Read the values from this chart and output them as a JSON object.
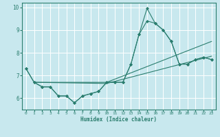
{
  "xlabel": "Humidex (Indice chaleur)",
  "xlim": [
    -0.5,
    23.5
  ],
  "ylim": [
    5.5,
    10.2
  ],
  "yticks": [
    6,
    7,
    8,
    9,
    10
  ],
  "xticks": [
    0,
    1,
    2,
    3,
    4,
    5,
    6,
    7,
    8,
    9,
    10,
    11,
    12,
    13,
    14,
    15,
    16,
    17,
    18,
    19,
    20,
    21,
    22,
    23
  ],
  "bg_color": "#c8e8ee",
  "grid_color": "#ffffff",
  "line_color": "#2a7d6e",
  "lines": [
    {
      "x": [
        0,
        1,
        2,
        3,
        4,
        5,
        6,
        7,
        8,
        9,
        10,
        11,
        12,
        13,
        14,
        15,
        16,
        17,
        18,
        19,
        20,
        21,
        22,
        23
      ],
      "y": [
        7.3,
        6.7,
        6.5,
        6.5,
        6.1,
        6.1,
        5.8,
        6.1,
        6.2,
        6.3,
        6.7,
        6.7,
        6.7,
        7.5,
        8.8,
        9.95,
        9.3,
        9.0,
        8.5,
        7.5,
        7.5,
        7.7,
        7.8,
        7.7
      ],
      "marker": "D",
      "markersize": 2.0
    },
    {
      "x": [
        0,
        1,
        2,
        3,
        4,
        5,
        6,
        7,
        8,
        9,
        10,
        11,
        12,
        13,
        14,
        15,
        16,
        17,
        18,
        19,
        20,
        21,
        22,
        23
      ],
      "y": [
        7.3,
        6.7,
        6.5,
        6.5,
        6.1,
        6.1,
        5.8,
        6.1,
        6.2,
        6.3,
        6.7,
        6.7,
        6.7,
        7.5,
        8.8,
        9.4,
        9.3,
        9.0,
        8.5,
        7.5,
        7.5,
        7.7,
        7.8,
        7.7
      ],
      "marker": "D",
      "markersize": 2.0
    },
    {
      "x": [
        1,
        10,
        23
      ],
      "y": [
        6.7,
        6.7,
        8.5
      ],
      "marker": null,
      "markersize": 0
    },
    {
      "x": [
        1,
        10,
        23
      ],
      "y": [
        6.7,
        6.65,
        7.85
      ],
      "marker": null,
      "markersize": 0
    }
  ]
}
